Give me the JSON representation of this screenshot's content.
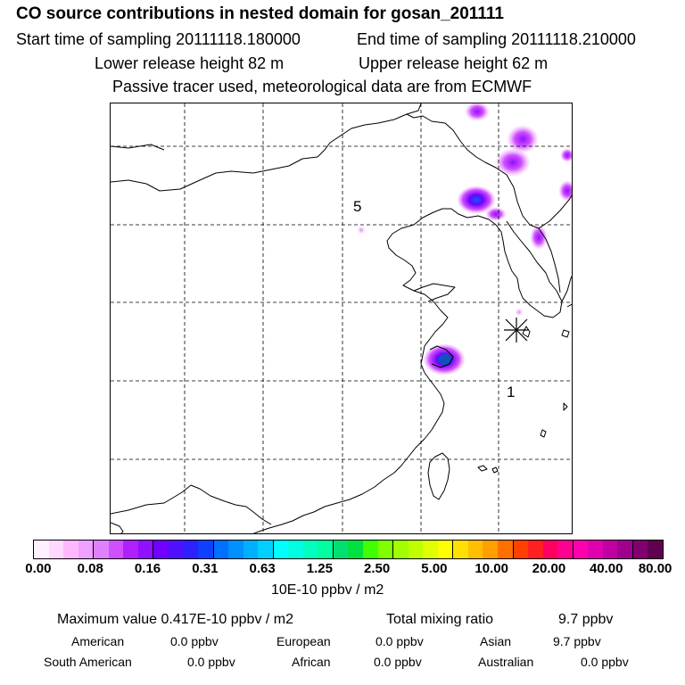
{
  "header": {
    "title": "CO  source contributions in nested domain for gosan_201111",
    "start_label": "Start time of sampling 20111118.180000",
    "end_label": "End time of sampling 20111118.210000",
    "lower_label": "Lower release height   82 m",
    "upper_label": "Upper release height   62 m",
    "note": "Passive tracer used, meteorological data are from ECMWF"
  },
  "map": {
    "labels": [
      "5",
      "1"
    ],
    "receptor_marker": "asterisk-receptor-icon"
  },
  "colorbar": {
    "colors": [
      "#fff0ff",
      "#ffd8ff",
      "#ffb8ff",
      "#f0a0ff",
      "#e080ff",
      "#d050ff",
      "#b020ff",
      "#9010ff",
      "#7000ff",
      "#5010ff",
      "#3020ff",
      "#1040ff",
      "#0070ff",
      "#0090ff",
      "#00b0ff",
      "#00d0ff",
      "#00ffff",
      "#00ffe0",
      "#00ffc0",
      "#00ffa0",
      "#00e070",
      "#00e040",
      "#40ff00",
      "#80ff00",
      "#a0ff00",
      "#c0ff00",
      "#e0ff00",
      "#ffff00",
      "#ffe000",
      "#ffc000",
      "#ffa000",
      "#ff7000",
      "#ff4000",
      "#ff2020",
      "#ff0060",
      "#ff0090",
      "#ff00b0",
      "#e000b0",
      "#c000a0",
      "#a00090",
      "#800070",
      "#600050"
    ],
    "ticks": [
      "0.00",
      "0.08",
      "0.16",
      "0.31",
      "0.63",
      "1.25",
      "2.50",
      "5.00",
      "10.00",
      "20.00",
      "40.00",
      "80.00"
    ],
    "unit": "10E-10 ppbv / m2"
  },
  "stats": {
    "max_label": "Maximum value  0.417E-10 ppbv / m2",
    "total_label": "Total mixing ratio",
    "total_value": "9.7 ppbv",
    "row1": [
      {
        "name": "American",
        "value": "0.0 ppbv"
      },
      {
        "name": "European",
        "value": "0.0 ppbv"
      },
      {
        "name": "Asian",
        "value": "9.7 ppbv"
      }
    ],
    "row2": [
      {
        "name": "South American",
        "value": "0.0 ppbv"
      },
      {
        "name": "African",
        "value": "0.0 ppbv"
      },
      {
        "name": "Australian",
        "value": "0.0 ppbv"
      }
    ]
  }
}
